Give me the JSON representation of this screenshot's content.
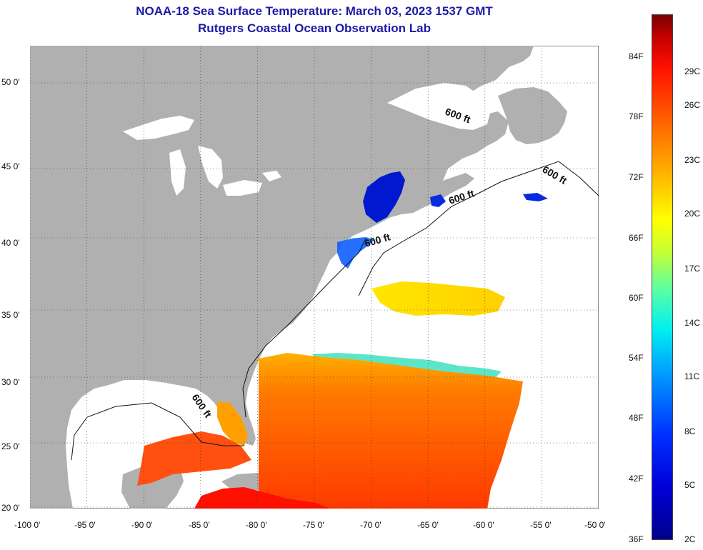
{
  "title": "NOAA-18 Sea Surface Temperature:  March 03, 2023 1537 GMT",
  "subtitle": "Rutgers Coastal Ocean Observation Lab",
  "contour_label": "600 ft",
  "lat_labels": [
    "50 0'",
    "45 0'",
    "40 0'",
    "35 0'",
    "30 0'",
    "25 0'",
    "20 0'"
  ],
  "lon_labels": [
    "-100 0'",
    "-95 0'",
    "-90 0'",
    "-85 0'",
    "-80 0'",
    "-75 0'",
    "-70 0'",
    "-65 0'",
    "-60 0'",
    "-55 0'",
    "-50 0'"
  ],
  "colorbar": {
    "fahrenheit": [
      "84F",
      "78F",
      "72F",
      "66F",
      "60F",
      "54F",
      "48F",
      "42F",
      "36F"
    ],
    "celsius": [
      "29C",
      "26C",
      "23C",
      "20C",
      "17C",
      "14C",
      "11C",
      "8C",
      "5C",
      "2C"
    ]
  },
  "colors": {
    "land": "#b0b0b0",
    "title": "#1a1aa6",
    "cold": "#0020e0",
    "warm": "#ff4010",
    "hot": "#ff0000",
    "mid": "#ffd000"
  }
}
